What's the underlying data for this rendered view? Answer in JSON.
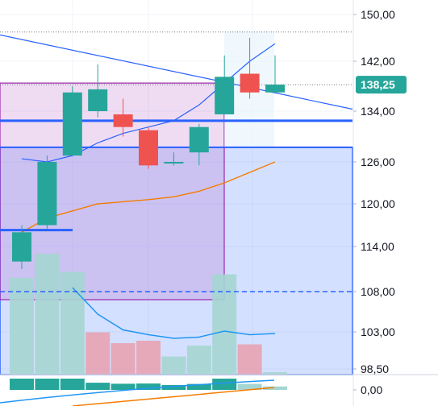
{
  "price_axis": {
    "labels": [
      "150,00",
      "142,00",
      "134,00",
      "126,00",
      "120,00",
      "114,00",
      "108,00",
      "103,00",
      "98,50"
    ]
  },
  "indicator_axis": {
    "label": "0,00"
  },
  "last_price": {
    "label": "138,25",
    "color": "#26a69a"
  },
  "colors": {
    "up": "#26a69a",
    "down": "#ef5350",
    "up_volume": "#a5d6d2",
    "down_volume": "#e7a3b3",
    "ma_blue": "#2962ff",
    "ma_orange": "#f57c00",
    "level_line": "#2962ff",
    "zone_purple": "#9c27b0",
    "zone_blue": "#2962ff"
  },
  "chart_data": {
    "type": "candlestick",
    "y_axis": {
      "min": 98.5,
      "max": 150,
      "scale": "linear",
      "position": "right"
    },
    "candles": [
      {
        "open": 112.0,
        "high": 117.0,
        "low": 111.0,
        "close": 116.0
      },
      {
        "open": 117.0,
        "high": 127.0,
        "low": 116.5,
        "close": 126.0
      },
      {
        "open": 127.0,
        "high": 138.0,
        "low": 127.0,
        "close": 137.0
      },
      {
        "open": 134.0,
        "high": 141.5,
        "low": 133.0,
        "close": 137.5
      },
      {
        "open": 133.5,
        "high": 136.0,
        "low": 130.0,
        "close": 131.5
      },
      {
        "open": 131.0,
        "high": 131.5,
        "low": 125.0,
        "close": 125.5
      },
      {
        "open": 126.0,
        "high": 127.5,
        "low": 125.5,
        "close": 126.0
      },
      {
        "open": 127.5,
        "high": 132.0,
        "low": 125.5,
        "close": 131.5
      },
      {
        "open": 133.5,
        "high": 143.0,
        "low": 133.5,
        "close": 139.5
      },
      {
        "open": 140.0,
        "high": 146.0,
        "low": 136.0,
        "close": 137.0
      },
      {
        "open": 137.0,
        "high": 143.0,
        "low": 137.0,
        "close": 138.25
      }
    ],
    "volume_panel": [
      {
        "value": 0.8,
        "direction": "up"
      },
      {
        "value": 1.0,
        "direction": "up"
      },
      {
        "value": 0.85,
        "direction": "up"
      },
      {
        "value": 0.35,
        "direction": "down"
      },
      {
        "value": 0.26,
        "direction": "down"
      },
      {
        "value": 0.28,
        "direction": "down"
      },
      {
        "value": 0.15,
        "direction": "up"
      },
      {
        "value": 0.24,
        "direction": "up"
      },
      {
        "value": 0.83,
        "direction": "up"
      },
      {
        "value": 0.25,
        "direction": "down"
      },
      {
        "value": 0.02,
        "direction": "up"
      }
    ],
    "volume_ma": [
      null,
      null,
      0.72,
      0.5,
      0.37,
      0.33,
      0.3,
      0.31,
      0.36,
      0.33,
      0.34
    ],
    "ma_long": [
      116.0,
      118.0,
      119.0,
      120.0,
      120.3,
      120.6,
      121.0,
      121.8,
      123.0,
      124.5,
      126.0
    ],
    "ma_short": [
      126.5,
      126.0,
      127.0,
      129.0,
      130.5,
      131.5,
      132.5,
      135.0,
      138.5,
      142.0,
      145.0
    ],
    "trendline": {
      "from": 146.5,
      "to": 136.0
    },
    "levels": [
      {
        "price": 132.5,
        "style": "solid"
      },
      {
        "price": 128.3,
        "style": "solid-thin"
      },
      {
        "price": 108.0,
        "style": "dashed"
      },
      {
        "price": 116.3,
        "style": "short-segment"
      }
    ],
    "zones": [
      {
        "top": 138.5,
        "bottom": 107.0,
        "color": "purple"
      },
      {
        "top": 128.3,
        "bottom": 98.5,
        "color": "blue"
      }
    ],
    "dotted_levels": [
      147.0,
      138.25
    ]
  }
}
